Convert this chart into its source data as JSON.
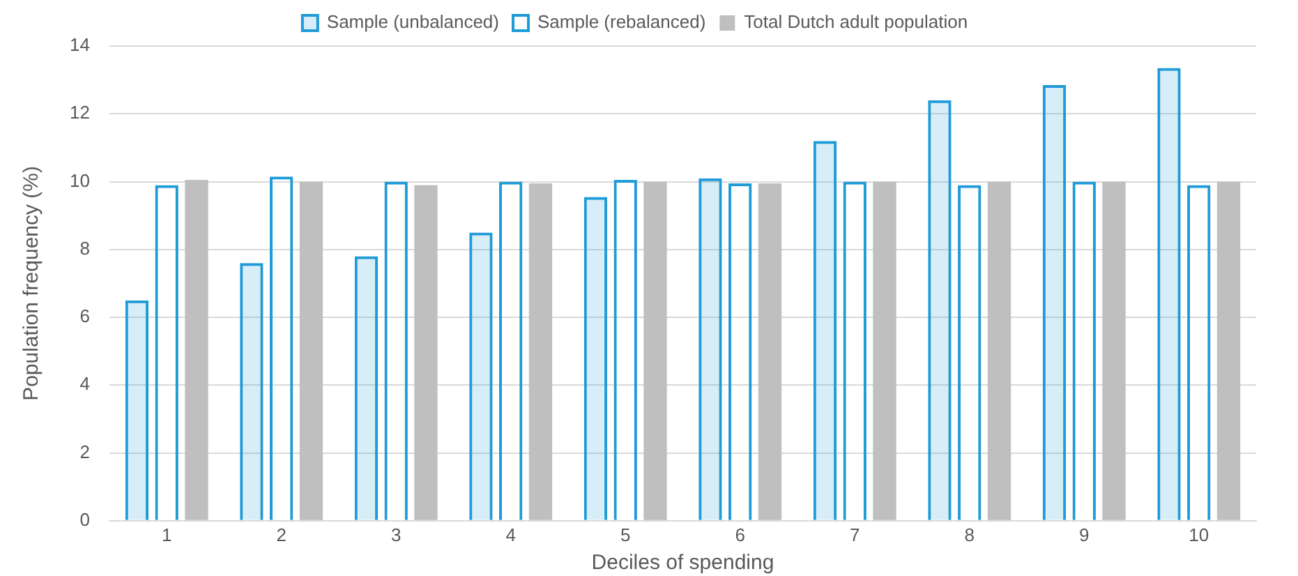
{
  "chart_data": {
    "type": "bar",
    "xlabel": "Deciles of spending",
    "ylabel": "Population frequency (%)",
    "categories": [
      "1",
      "2",
      "3",
      "4",
      "5",
      "6",
      "7",
      "8",
      "9",
      "10"
    ],
    "series": [
      {
        "name": "Sample (unbalanced)",
        "color": "#1f9bd7",
        "values": [
          6.5,
          7.6,
          7.8,
          8.5,
          9.55,
          10.1,
          11.2,
          12.4,
          12.85,
          13.35
        ]
      },
      {
        "name": "Sample (rebalanced)",
        "color": "#1f9bd7",
        "values": [
          9.9,
          10.15,
          10.0,
          10.0,
          10.05,
          9.95,
          10.0,
          9.9,
          10.0,
          9.9
        ]
      },
      {
        "name": "Total Dutch adult population",
        "color": "#bfbfbf",
        "values": [
          10.05,
          10.0,
          9.9,
          9.95,
          10.0,
          9.95,
          10.0,
          10.0,
          10.0,
          10.0
        ]
      }
    ],
    "ylim": [
      0,
      14
    ],
    "yticks": [
      0,
      2,
      4,
      6,
      8,
      10,
      12,
      14
    ],
    "grid": "y",
    "legend": "top"
  }
}
